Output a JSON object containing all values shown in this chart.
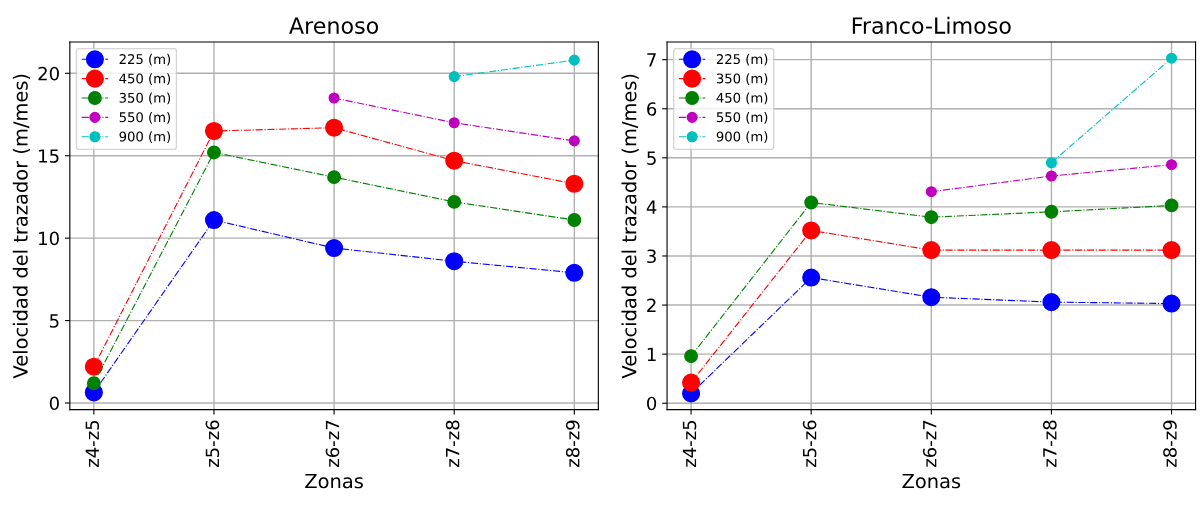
{
  "chart_data": [
    {
      "type": "line",
      "title": "Arenoso",
      "xlabel": "Zonas",
      "ylabel": "Velocidad del trazador (m/mes)",
      "categories": [
        "z4-z5",
        "z5-z6",
        "z6-z7",
        "z7-z8",
        "z8-z9"
      ],
      "ylim": [
        -0.4,
        21.9
      ],
      "yticks": [
        0,
        5,
        10,
        15,
        20
      ],
      "grid": true,
      "legend": "top left",
      "marker": "circle",
      "line_style": "dashdot",
      "series": [
        {
          "name": "225 (m)",
          "color": "#0000ff",
          "values": [
            0.64,
            11.1,
            9.4,
            8.6,
            7.9
          ]
        },
        {
          "name": "450 (m)",
          "color": "#ff0000",
          "values": [
            2.2,
            16.5,
            16.7,
            14.7,
            13.3
          ]
        },
        {
          "name": "350 (m)",
          "color": "#008000",
          "values": [
            1.2,
            15.2,
            13.7,
            12.2,
            11.1
          ]
        },
        {
          "name": "550 (m)",
          "color": "#bf00bf",
          "values": [
            null,
            null,
            18.5,
            17.0,
            15.9
          ]
        },
        {
          "name": "900 (m)",
          "color": "#00bfbf",
          "values": [
            null,
            null,
            null,
            19.8,
            20.8
          ]
        }
      ]
    },
    {
      "type": "line",
      "title": "Franco-Limoso",
      "xlabel": "Zonas",
      "ylabel": "Velocidad del trazador (m/mes)",
      "categories": [
        "z4-z5",
        "z5-z6",
        "z6-z7",
        "z7-z8",
        "z8-z9"
      ],
      "ylim": [
        -0.13,
        7.36
      ],
      "yticks": [
        0,
        1,
        2,
        3,
        4,
        5,
        6,
        7
      ],
      "grid": true,
      "legend": "top left",
      "marker": "circle",
      "line_style": "dashdot",
      "series": [
        {
          "name": "225 (m)",
          "color": "#0000ff",
          "values": [
            0.2,
            2.56,
            2.16,
            2.06,
            2.03
          ]
        },
        {
          "name": "350 (m)",
          "color": "#ff0000",
          "values": [
            0.42,
            3.52,
            3.12,
            3.12,
            3.12
          ]
        },
        {
          "name": "450 (m)",
          "color": "#008000",
          "values": [
            0.96,
            4.09,
            3.79,
            3.9,
            4.03
          ]
        },
        {
          "name": "550 (m)",
          "color": "#bf00bf",
          "values": [
            null,
            null,
            4.31,
            4.63,
            4.86
          ]
        },
        {
          "name": "900 (m)",
          "color": "#00bfbf",
          "values": [
            null,
            null,
            null,
            4.9,
            7.03
          ]
        }
      ]
    }
  ]
}
